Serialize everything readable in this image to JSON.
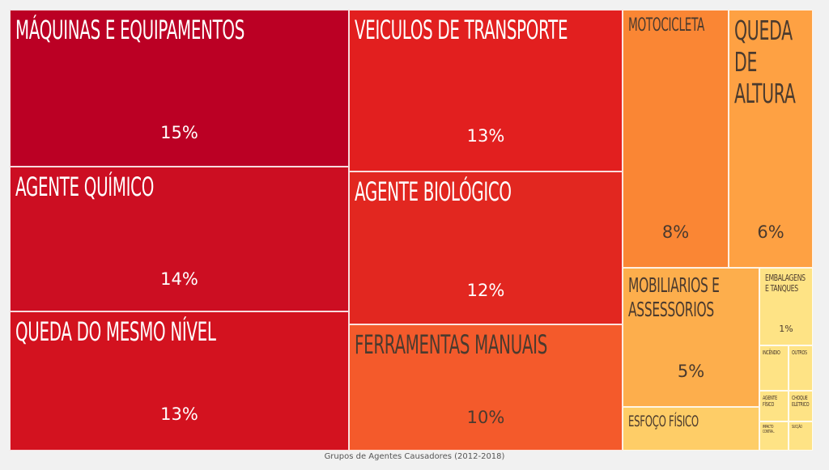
{
  "chart_data": {
    "type": "treemap",
    "caption": "Grupos de Agentes Causadores (2012-2018)",
    "items": [
      {
        "name": "MÁQUINAS E EQUIPAMENTOS",
        "label": "15%",
        "value": 15,
        "color": "#bb0024"
      },
      {
        "name": "AGENTE QUÍMICO",
        "label": "14%",
        "value": 14,
        "color": "#cc0e22"
      },
      {
        "name": "QUEDA DO MESMO NÍVEL",
        "label": "13%",
        "value": 13,
        "color": "#d3121f"
      },
      {
        "name": "VEICULOS DE TRANSPORTE",
        "label": "13%",
        "value": 13,
        "color": "#e21f1f"
      },
      {
        "name": "AGENTE BIOLÓGICO",
        "label": "12%",
        "value": 12,
        "color": "#e22720"
      },
      {
        "name": "FERRAMENTAS MANUAIS",
        "label": "10%",
        "value": 10,
        "color": "#f45a2b"
      },
      {
        "name": "MOTOCICLETA",
        "label": "8%",
        "value": 8,
        "color": "#fa8634"
      },
      {
        "name": "QUEDA DE ALTURA",
        "label": "6%",
        "value": 6,
        "color": "#fea143"
      },
      {
        "name": "MOBILIARIOS E ASSESSORIOS",
        "label": "5%",
        "value": 5,
        "color": "#fdae4c"
      },
      {
        "name": "ESFOÇO FÍSICO",
        "label": "",
        "value": 3,
        "color": "#fecd67"
      },
      {
        "name": "EMBALAGENS E TANQUES",
        "label": "1%",
        "value": 1,
        "color": "#fee385"
      },
      {
        "name": "INCÊNDIO",
        "label": "",
        "value": 0.6,
        "color": "#fee385"
      },
      {
        "name": "OUTROS",
        "label": "",
        "value": 0.5,
        "color": "#fee385"
      },
      {
        "name": "AGENTE FÍSICO",
        "label": "",
        "value": 0.5,
        "color": "#fee385"
      },
      {
        "name": "CHOQUE ELÉTRICO",
        "label": "",
        "value": 0.5,
        "color": "#fee385"
      },
      {
        "name": "IMPACTO CONTRA...",
        "label": "",
        "value": 0.3,
        "color": "#fee385"
      },
      {
        "name": "SUCÇÃO",
        "label": "",
        "value": 0.3,
        "color": "#fee385"
      }
    ]
  }
}
